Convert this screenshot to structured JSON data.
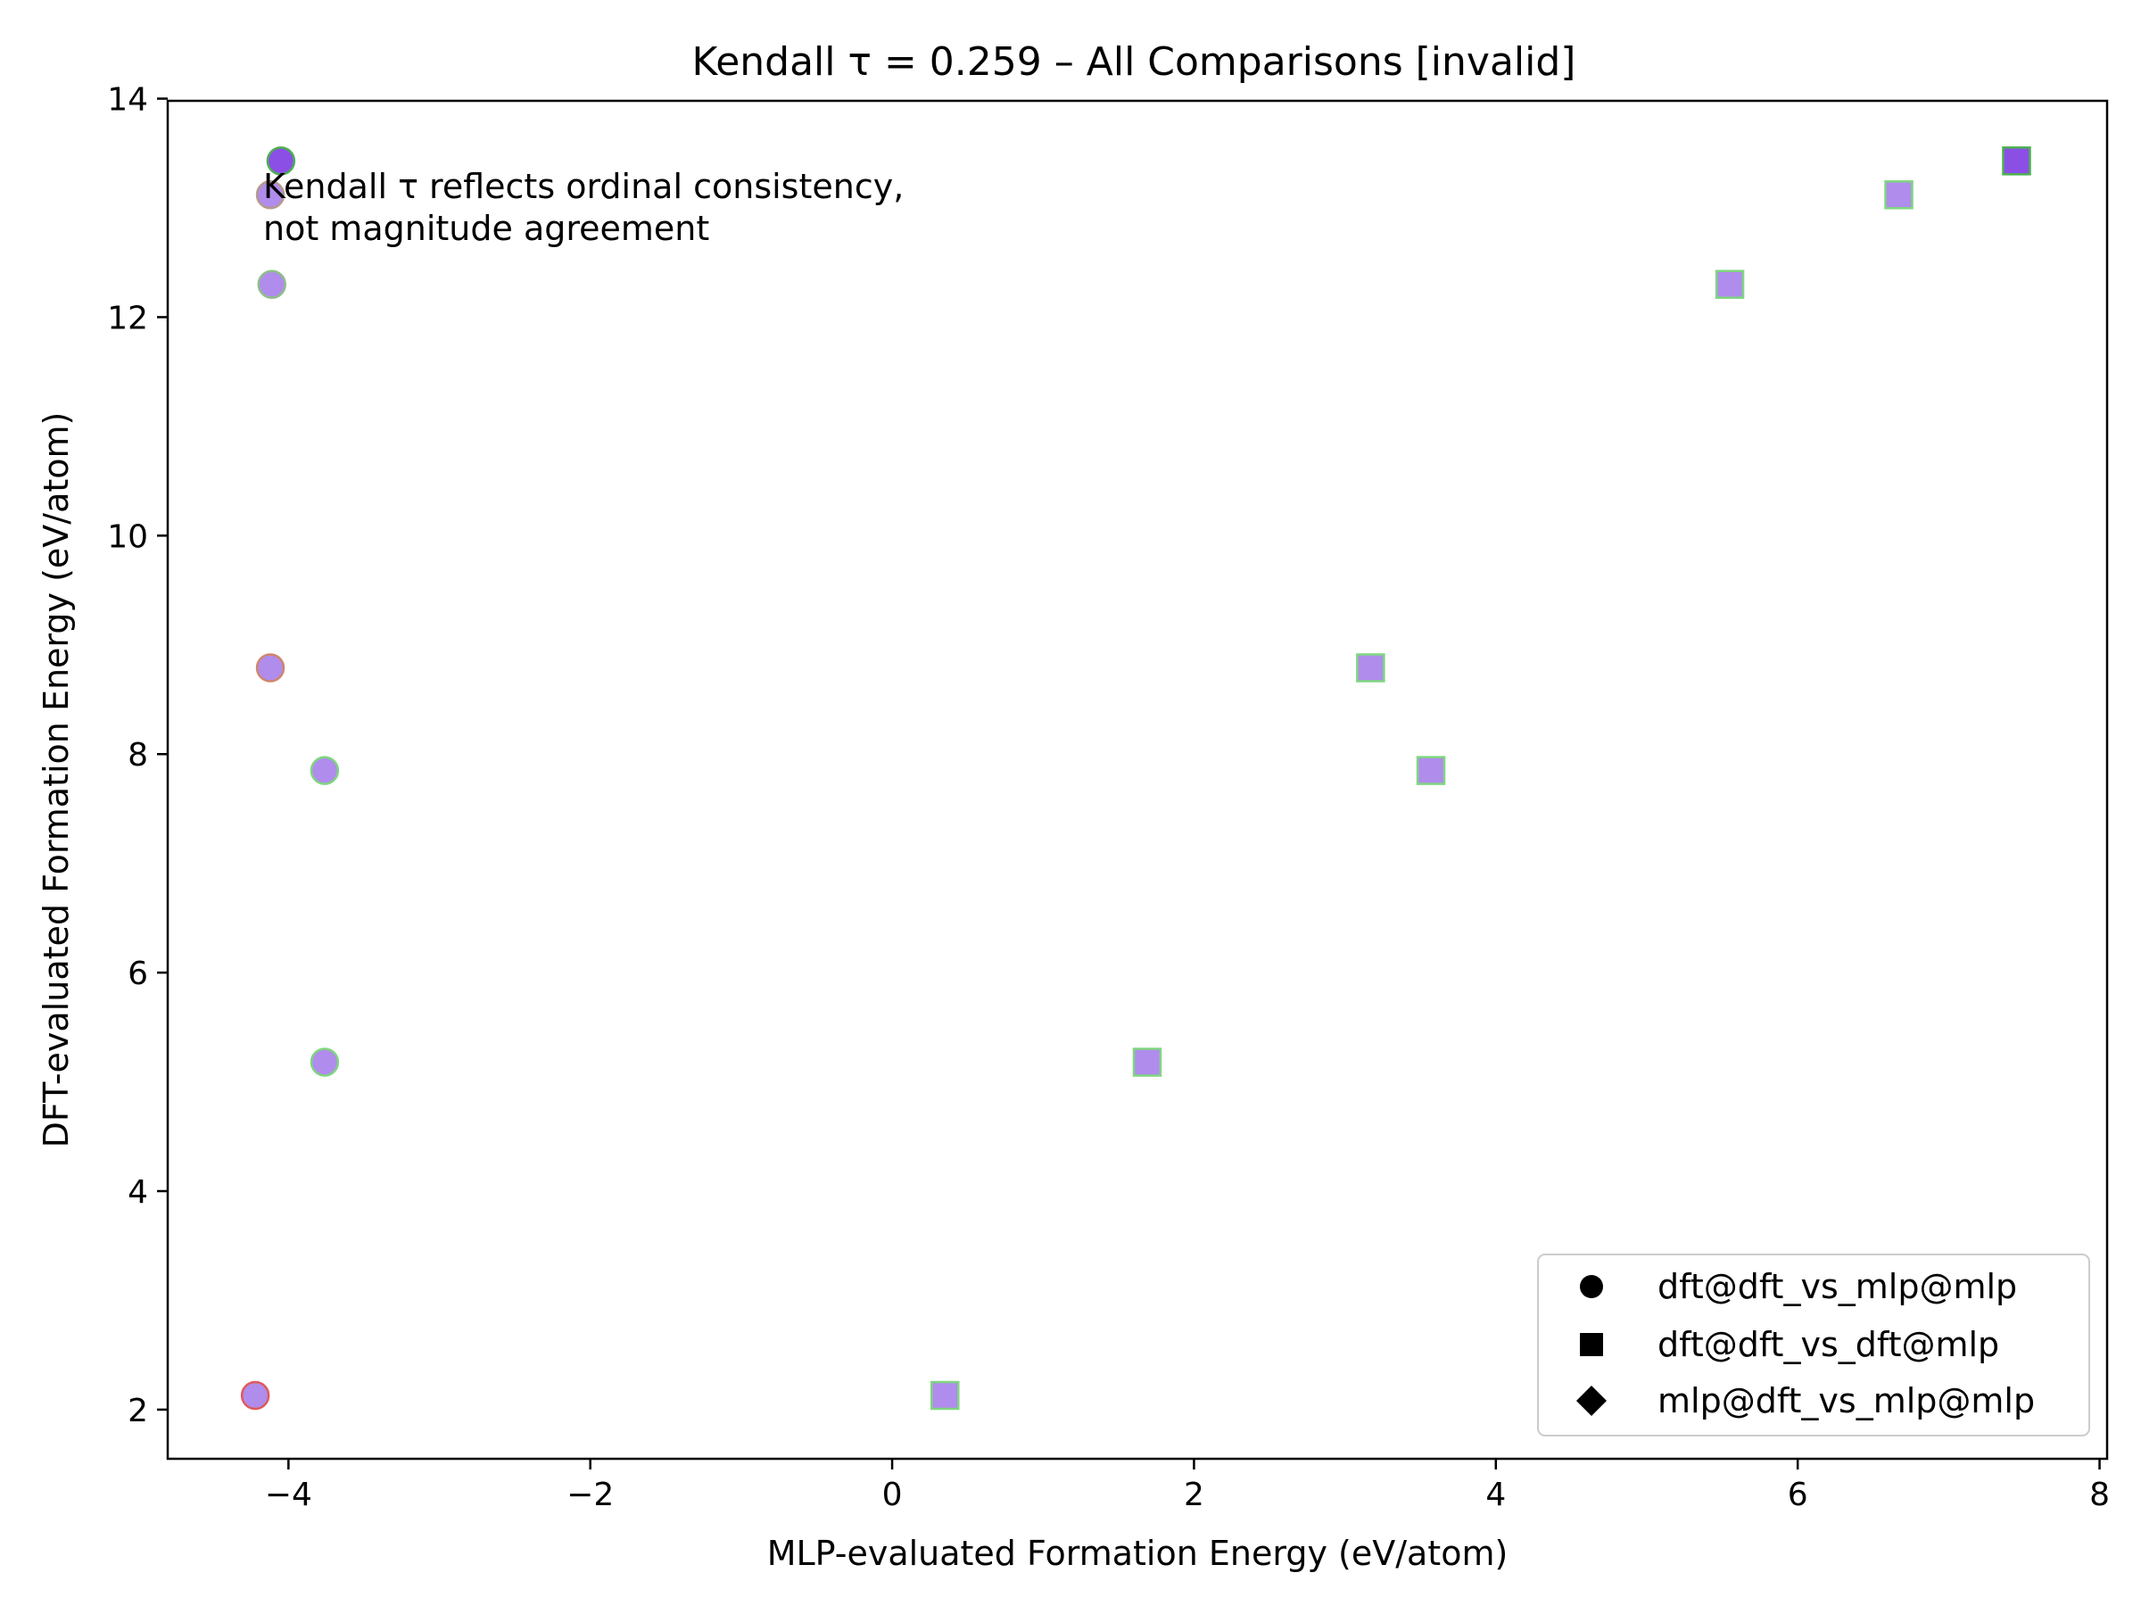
{
  "chart_data": {
    "type": "scatter",
    "title": "Kendall τ = 0.259 – All Comparisons [invalid]",
    "xlabel": "MLP-evaluated Formation Energy (eV/atom)",
    "ylabel": "DFT-evaluated Formation Energy (eV/atom)",
    "xlim": [
      -4.8,
      8.05
    ],
    "ylim": [
      1.55,
      13.98
    ],
    "xticks": [
      -4,
      -2,
      0,
      2,
      4,
      6,
      8
    ],
    "yticks": [
      2,
      4,
      6,
      8,
      10,
      12,
      14
    ],
    "xtick_labels": [
      "−4",
      "−2",
      "0",
      "2",
      "4",
      "6",
      "8"
    ],
    "ytick_labels": [
      "2",
      "4",
      "6",
      "8",
      "10",
      "12",
      "14"
    ],
    "grid": false,
    "legend_position": "lower-right",
    "annotation": {
      "lines": [
        "Kendall τ reflects ordinal consistency,",
        "not magnitude agreement"
      ]
    },
    "series": [
      {
        "name": "dft@dft_vs_mlp@mlp",
        "marker": "circle",
        "points": [
          {
            "x": -4.05,
            "y": 13.43,
            "fill": "#8b4fe6",
            "edge": "#4caf50"
          },
          {
            "x": -4.12,
            "y": 13.12,
            "fill": "#b08ced",
            "edge": "#b59a8a"
          },
          {
            "x": -4.11,
            "y": 12.3,
            "fill": "#b08ced",
            "edge": "#8fbf8a"
          },
          {
            "x": -4.12,
            "y": 8.79,
            "fill": "#b08ced",
            "edge": "#d0866a"
          },
          {
            "x": -3.76,
            "y": 7.85,
            "fill": "#b08ced",
            "edge": "#7fd67f"
          },
          {
            "x": -3.76,
            "y": 5.18,
            "fill": "#b08ced",
            "edge": "#7fd67f"
          },
          {
            "x": -4.22,
            "y": 2.13,
            "fill": "#b08ced",
            "edge": "#e05a5a"
          }
        ]
      },
      {
        "name": "dft@dft_vs_dft@mlp",
        "marker": "square",
        "points": [
          {
            "x": 7.45,
            "y": 13.43,
            "fill": "#8b4fe6",
            "edge": "#4caf50"
          },
          {
            "x": 6.67,
            "y": 13.12,
            "fill": "#b08ced",
            "edge": "#7fd67f"
          },
          {
            "x": 5.55,
            "y": 12.3,
            "fill": "#b08ced",
            "edge": "#7fd67f"
          },
          {
            "x": 3.17,
            "y": 8.79,
            "fill": "#b08ced",
            "edge": "#7fd67f"
          },
          {
            "x": 3.57,
            "y": 7.85,
            "fill": "#b08ced",
            "edge": "#7fd67f"
          },
          {
            "x": 1.69,
            "y": 5.18,
            "fill": "#b08ced",
            "edge": "#7fd67f"
          },
          {
            "x": 0.35,
            "y": 2.13,
            "fill": "#b08ced",
            "edge": "#7fd67f"
          }
        ]
      },
      {
        "name": "mlp@dft_vs_mlp@mlp",
        "marker": "diamond",
        "points": []
      }
    ]
  }
}
